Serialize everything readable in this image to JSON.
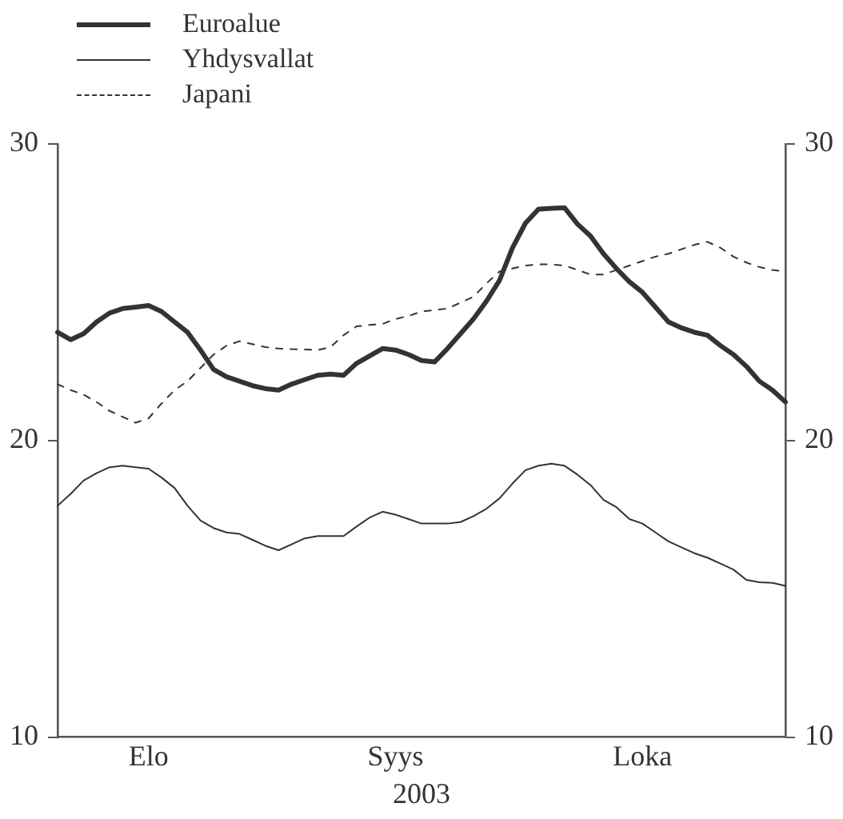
{
  "chart_data": {
    "type": "line",
    "xlabel": "2003",
    "categories": [
      null,
      null,
      null,
      null,
      null,
      null,
      null,
      "Elo",
      null,
      null,
      null,
      null,
      null,
      null,
      null,
      null,
      null,
      null,
      null,
      null,
      null,
      null,
      null,
      null,
      null,
      null,
      "Syys",
      null,
      null,
      null,
      null,
      null,
      null,
      null,
      null,
      null,
      null,
      null,
      null,
      null,
      null,
      null,
      null,
      null,
      null,
      "Loka",
      null,
      null,
      null,
      null,
      null,
      null,
      null,
      null,
      null,
      null,
      null
    ],
    "series": [
      {
        "name": "Euroalue",
        "color": "#333333",
        "line_style": "solid",
        "values": [
          23.65,
          23.4,
          23.6,
          24.0,
          24.3,
          24.45,
          24.5,
          24.55,
          24.35,
          24.0,
          23.65,
          23.05,
          22.4,
          22.15,
          22.0,
          21.85,
          21.75,
          21.7,
          21.9,
          22.05,
          22.2,
          22.24,
          22.2,
          22.6,
          22.85,
          23.1,
          23.05,
          22.9,
          22.7,
          22.65,
          23.1,
          23.6,
          24.1,
          24.7,
          25.4,
          26.5,
          27.33,
          27.8,
          27.83,
          27.85,
          27.3,
          26.9,
          26.3,
          25.8,
          25.35,
          25.0,
          24.5,
          24.0,
          23.8,
          23.65,
          23.55,
          23.2,
          22.9,
          22.5,
          22.0,
          21.7,
          21.3
        ]
      },
      {
        "name": "Yhdysvallat",
        "color": "#333333",
        "line_style": "solid",
        "values": [
          17.8,
          18.2,
          18.65,
          18.9,
          19.1,
          19.15,
          19.1,
          19.05,
          18.75,
          18.4,
          17.8,
          17.3,
          17.05,
          16.9,
          16.85,
          16.65,
          16.45,
          16.3,
          16.5,
          16.7,
          16.78,
          16.78,
          16.78,
          17.1,
          17.4,
          17.6,
          17.5,
          17.35,
          17.2,
          17.2,
          17.2,
          17.25,
          17.45,
          17.7,
          18.05,
          18.55,
          19.0,
          19.15,
          19.22,
          19.15,
          18.85,
          18.5,
          18.0,
          17.75,
          17.35,
          17.2,
          16.9,
          16.6,
          16.4,
          16.2,
          16.05,
          15.85,
          15.65,
          15.3,
          15.22,
          15.2,
          15.1
        ]
      },
      {
        "name": "Japani",
        "color": "#333333",
        "line_style": "dashed",
        "values": [
          21.9,
          21.7,
          21.55,
          21.3,
          21.0,
          20.8,
          20.6,
          20.75,
          21.25,
          21.7,
          22.0,
          22.45,
          22.9,
          23.2,
          23.35,
          23.25,
          23.15,
          23.1,
          23.08,
          23.07,
          23.05,
          23.15,
          23.55,
          23.85,
          23.9,
          23.93,
          24.1,
          24.2,
          24.35,
          24.4,
          24.45,
          24.65,
          24.85,
          25.3,
          25.7,
          25.8,
          25.9,
          25.94,
          25.94,
          25.9,
          25.75,
          25.6,
          25.6,
          25.75,
          25.9,
          26.05,
          26.2,
          26.3,
          26.45,
          26.6,
          26.7,
          26.5,
          26.2,
          26.0,
          25.85,
          25.75,
          25.7
        ]
      }
    ],
    "ylim": [
      10,
      30
    ],
    "yticks": [
      10,
      20,
      30
    ],
    "y2lim": [
      10,
      30
    ],
    "y2ticks": [
      10,
      20,
      30
    ],
    "grid": false,
    "legend": "top left",
    "marker": "none"
  }
}
